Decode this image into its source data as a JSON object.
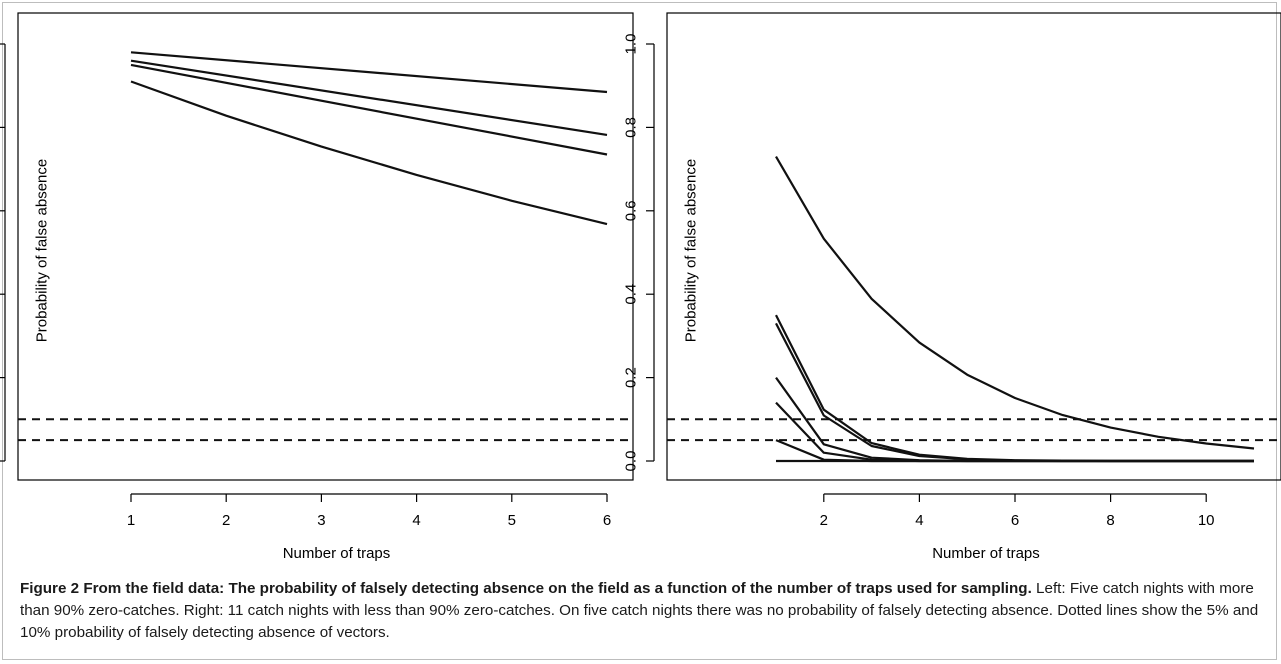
{
  "chart_data": [
    {
      "type": "line",
      "title": "",
      "xlabel": "Number of traps",
      "ylabel": "Probability of false absence",
      "xlim": [
        1,
        6
      ],
      "ylim": [
        0,
        1
      ],
      "x_ticks": [
        1,
        2,
        3,
        4,
        5,
        6
      ],
      "y_ticks": [
        "0.0",
        "0.2",
        "0.4",
        "0.6",
        "0.8",
        "1.0"
      ],
      "series": [
        {
          "x": [
            1,
            6
          ],
          "values": [
            0.98,
            0.885
          ],
          "style": "solid"
        },
        {
          "x": [
            1,
            6
          ],
          "values": [
            0.96,
            0.782
          ],
          "style": "solid"
        },
        {
          "x": [
            1,
            6
          ],
          "values": [
            0.95,
            0.735
          ],
          "style": "solid"
        },
        {
          "x": [
            1,
            2,
            3,
            4,
            5,
            6
          ],
          "values": [
            0.91,
            0.828,
            0.754,
            0.686,
            0.624,
            0.568
          ],
          "style": "solid"
        },
        {
          "x": [
            1,
            6
          ],
          "values": [
            0.1,
            0.1
          ],
          "style": "dashed"
        },
        {
          "x": [
            1,
            6
          ],
          "values": [
            0.05,
            0.05
          ],
          "style": "dashed"
        }
      ],
      "grid": false,
      "legend": "none"
    },
    {
      "type": "line",
      "title": "",
      "xlabel": "Number of traps",
      "ylabel": "Probability of false absence",
      "xlim": [
        1,
        11
      ],
      "ylim": [
        0,
        1
      ],
      "x_ticks": [
        2,
        4,
        6,
        8,
        10
      ],
      "y_ticks": [
        "0.0",
        "0.2",
        "0.4",
        "0.6",
        "0.8",
        "1.0"
      ],
      "series": [
        {
          "x": [
            1,
            2,
            3,
            4,
            5,
            6,
            7,
            8,
            9,
            10,
            11
          ],
          "values": [
            0.73,
            0.533,
            0.389,
            0.284,
            0.207,
            0.151,
            0.11,
            0.08,
            0.058,
            0.042,
            0.03
          ],
          "style": "solid"
        },
        {
          "x": [
            1,
            2,
            3,
            4,
            5,
            6,
            7,
            8,
            9,
            10,
            11
          ],
          "values": [
            0.35,
            0.123,
            0.043,
            0.015,
            0.005,
            0.002,
            0.001,
            0.0,
            0.0,
            0.0,
            0.0
          ],
          "style": "solid"
        },
        {
          "x": [
            1,
            2,
            3,
            4,
            5,
            6,
            7,
            8,
            9,
            10,
            11
          ],
          "values": [
            0.33,
            0.109,
            0.036,
            0.012,
            0.004,
            0.001,
            0.0,
            0.0,
            0.0,
            0.0,
            0.0
          ],
          "style": "solid"
        },
        {
          "x": [
            1,
            2,
            3,
            4,
            5,
            6,
            7,
            8,
            9,
            10,
            11
          ],
          "values": [
            0.2,
            0.04,
            0.008,
            0.002,
            0.0,
            0.0,
            0.0,
            0.0,
            0.0,
            0.0,
            0.0
          ],
          "style": "solid"
        },
        {
          "x": [
            1,
            2,
            3,
            4,
            5,
            6,
            7,
            8,
            9,
            10,
            11
          ],
          "values": [
            0.14,
            0.02,
            0.003,
            0.0,
            0.0,
            0.0,
            0.0,
            0.0,
            0.0,
            0.0,
            0.0
          ],
          "style": "solid"
        },
        {
          "x": [
            1,
            2,
            3,
            4,
            5,
            6,
            7,
            8,
            9,
            10,
            11
          ],
          "values": [
            0.05,
            0.003,
            0.0,
            0.0,
            0.0,
            0.0,
            0.0,
            0.0,
            0.0,
            0.0,
            0.0
          ],
          "style": "solid"
        },
        {
          "x": [
            1,
            11
          ],
          "values": [
            0.0,
            0.0
          ],
          "style": "solid"
        },
        {
          "x": [
            1,
            11
          ],
          "values": [
            0.1,
            0.1
          ],
          "style": "dashed"
        },
        {
          "x": [
            1,
            11
          ],
          "values": [
            0.05,
            0.05
          ],
          "style": "dashed"
        }
      ],
      "grid": false,
      "legend": "none"
    }
  ],
  "caption": {
    "label": "Figure 2",
    "title": "From the field data: The probability of falsely detecting absence on the field as a function of the number of traps used for sampling.",
    "body": "Left: Five catch nights with more than 90% zero-catches. Right: 11 catch nights with less than 90% zero-catches. On five catch nights there was no probability of falsely detecting absence. Dotted lines show the 5% and 10% probability of falsely detecting absence of vectors."
  }
}
